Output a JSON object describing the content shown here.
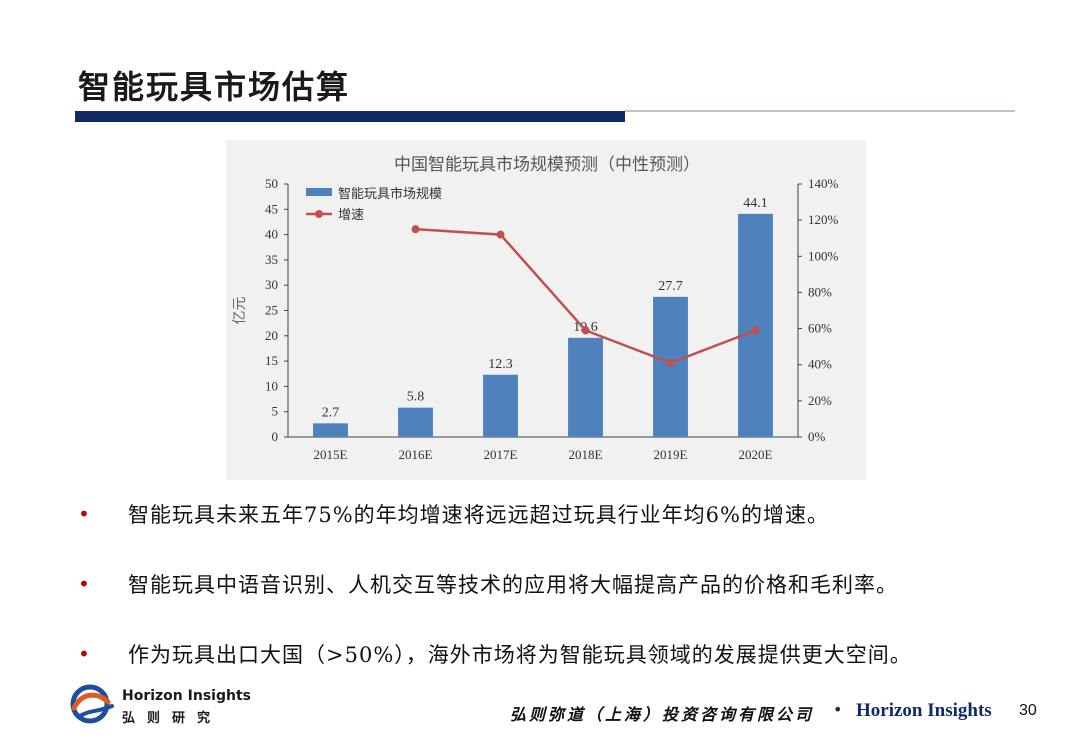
{
  "slide": {
    "title": "智能玩具市场估算",
    "bullets": [
      "智能玩具未来五年75%的年均增速将远远超过玩具行业年均6%的增速。",
      "智能玩具中语音识别、人机交互等技术的应用将大幅提高产品的价格和毛利率。",
      "作为玩具出口大国（>50%），海外市场将为智能玩具领域的发展提供更大空间。"
    ],
    "bullet_symbol": "•",
    "colors": {
      "title_bar": "#0f2a66",
      "bullet": "#c00000",
      "bar": "#4f81bd",
      "line": "#c0504d"
    }
  },
  "footer": {
    "brand_en": "Horizon Insights",
    "brand_cn": "弘则研究",
    "company": "弘则弥道（上海）投资咨询有限公司",
    "separator": "•",
    "brand_right": "Horizon Insights",
    "page_number": "30",
    "logo_icon": "horizon-logo-icon"
  },
  "chart_data": {
    "type": "bar",
    "title": "中国智能玩具市场规模预测（中性预测）",
    "ylabel": "亿元",
    "categories": [
      "2015E",
      "2016E",
      "2017E",
      "2018E",
      "2019E",
      "2020E"
    ],
    "series": [
      {
        "name": "智能玩具市场规模",
        "type": "bar",
        "axis": "left",
        "values": [
          2.7,
          5.8,
          12.3,
          19.6,
          27.7,
          44.1
        ],
        "labels": [
          "2.7",
          "5.8",
          "12.3",
          "19.6",
          "27.7",
          "44.1"
        ]
      },
      {
        "name": "增速",
        "type": "line",
        "axis": "right",
        "values": [
          null,
          115,
          112,
          59,
          41,
          59
        ]
      }
    ],
    "ylim": [
      0,
      50
    ],
    "yticks": [
      "0",
      "5",
      "10",
      "15",
      "20",
      "25",
      "30",
      "35",
      "40",
      "45",
      "50"
    ],
    "y2lim": [
      0,
      140
    ],
    "y2ticks": [
      "0%",
      "20%",
      "40%",
      "60%",
      "80%",
      "100%",
      "120%",
      "140%"
    ],
    "legend": "top-left",
    "grid": false
  }
}
